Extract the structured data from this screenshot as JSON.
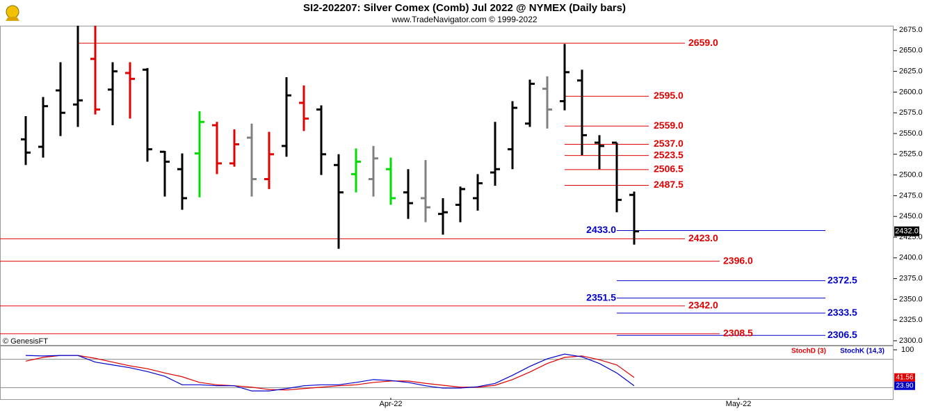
{
  "chart_data": [
    {
      "type": "ohlc",
      "title": "SI2-202207:  Silver Comex (Comb) Jul 2022 @ NYMEX  (Daily bars)",
      "subtitle": "www.TradeNavigator.com © 1999-2022",
      "watermark": "© GenesisFT",
      "categories": [
        null,
        null,
        null,
        null,
        null,
        null,
        null,
        null,
        null,
        null,
        null,
        null,
        null,
        null,
        null,
        null,
        null,
        null,
        null,
        null,
        null,
        "Apr-22",
        null,
        null,
        null,
        null,
        null,
        null,
        null,
        null,
        null,
        null,
        null,
        null,
        null,
        null,
        null,
        null,
        null,
        null,
        null,
        "May-22"
      ],
      "open": [
        2543,
        2534,
        2602,
        2585,
        2640,
        2603,
        2623,
        2627,
        2528,
        2507,
        2526,
        2560,
        2514,
        2545,
        2495,
        2535,
        2587,
        2579,
        2512,
        2501,
        2495,
        2507,
        2479,
        2472,
        2453,
        2464,
        2472,
        2503,
        2531,
        2562,
        2604,
        2589,
        2614,
        2539,
        2539,
        2476,
        null,
        null,
        null,
        null,
        null,
        null
      ],
      "high": [
        2571,
        2594,
        2636,
        2680,
        2680,
        2636,
        2636,
        2629,
        2529,
        2526,
        2577,
        2564,
        2555,
        2562,
        2552,
        2618,
        2608,
        2584,
        2525,
        2532,
        2535,
        2521,
        2507,
        2518,
        2472,
        2486,
        2501,
        2564,
        2589,
        2615,
        2619,
        2658,
        2627,
        2548,
        2539,
        2480,
        null,
        null,
        null,
        null,
        null,
        null
      ],
      "low": [
        2512,
        2521,
        2547,
        2558,
        2573,
        2560,
        2568,
        2516,
        2474,
        2458,
        2473,
        2501,
        2510,
        2474,
        2483,
        2522,
        2553,
        2500,
        2411,
        2479,
        2474,
        2464,
        2447,
        2443,
        2428,
        2443,
        2457,
        2487,
        2507,
        2558,
        2556,
        2578,
        2524,
        2507,
        2455,
        2416,
        null,
        null,
        null,
        null,
        null,
        null
      ],
      "close": [
        2527,
        2583,
        2575,
        2590,
        2579,
        2625,
        2616,
        2531,
        2516,
        2472,
        2564,
        2514,
        2537,
        2495,
        2525,
        2596,
        2568,
        2525,
        2479,
        2516,
        2520,
        2472,
        2466,
        2461,
        2455,
        2483,
        2490,
        2507,
        2581,
        2610,
        2579,
        2624,
        2548,
        2535,
        2470,
        2432,
        null,
        null,
        null,
        null,
        null,
        null
      ],
      "colors": [
        "#000000",
        "#000000",
        "#000000",
        "#000000",
        "#e00000",
        "#000000",
        "#e00000",
        "#000000",
        "#000000",
        "#000000",
        "#00dd00",
        "#e00000",
        "#e00000",
        "#808080",
        "#e00000",
        "#000000",
        "#e00000",
        "#000000",
        "#000000",
        "#00dd00",
        "#808080",
        "#00dd00",
        "#000000",
        "#808080",
        "#000000",
        "#000000",
        "#000000",
        "#000000",
        "#000000",
        "#000000",
        "#808080",
        "#000000",
        "#000000",
        "#000000",
        "#000000",
        "#000000",
        null,
        null,
        null,
        null,
        null,
        null
      ],
      "ylim": [
        2300,
        2675
      ],
      "yticks": [
        {
          "value": 2300,
          "label": "2300.0"
        },
        {
          "value": 2325,
          "label": "2325.0"
        },
        {
          "value": 2350,
          "label": "2350.0"
        },
        {
          "value": 2375,
          "label": "2375.0"
        },
        {
          "value": 2400,
          "label": "2400.0"
        },
        {
          "value": 2425,
          "label": "2425.0"
        },
        {
          "value": 2450,
          "label": "2450.0"
        },
        {
          "value": 2475,
          "label": "2475.0"
        },
        {
          "value": 2500,
          "label": "2500.0"
        },
        {
          "value": 2525,
          "label": "2525.0"
        },
        {
          "value": 2550,
          "label": "2550.0"
        },
        {
          "value": 2575,
          "label": "2575.0"
        },
        {
          "value": 2600,
          "label": "2600.0"
        },
        {
          "value": 2625,
          "label": "2625.0"
        },
        {
          "value": 2650,
          "label": "2650.0"
        },
        {
          "value": 2675,
          "label": "2675.0"
        }
      ],
      "levels": [
        {
          "value": 2659,
          "label": "2659.0",
          "color": "#e00000"
        },
        {
          "value": 2595,
          "label": "2595.0",
          "color": "#e00000"
        },
        {
          "value": 2559,
          "label": "2559.0",
          "color": "#e00000"
        },
        {
          "value": 2537,
          "label": "2537.0",
          "color": "#e00000"
        },
        {
          "value": 2523.5,
          "label": "2523.5",
          "color": "#e00000"
        },
        {
          "value": 2506.5,
          "label": "2506.5",
          "color": "#e00000"
        },
        {
          "value": 2487.5,
          "label": "2487.5",
          "color": "#e00000"
        },
        {
          "value": 2423,
          "label": "2423.0",
          "color": "#e00000"
        },
        {
          "value": 2396,
          "label": "2396.0",
          "color": "#e00000"
        },
        {
          "value": 2342,
          "label": "2342.0",
          "color": "#e00000"
        },
        {
          "value": 2308.5,
          "label": "2308.5",
          "color": "#e00000"
        },
        {
          "value": 2433,
          "label": "2433.0",
          "color": "#0000cc"
        },
        {
          "value": 2372.5,
          "label": "2372.5",
          "color": "#0000cc"
        },
        {
          "value": 2351.5,
          "label": "2351.5",
          "color": "#0000cc"
        },
        {
          "value": 2333.5,
          "label": "2333.5",
          "color": "#0000cc"
        },
        {
          "value": 2306.5,
          "label": "2306.5",
          "color": "#0000cc"
        }
      ],
      "last": {
        "value": 2432,
        "label": "2432.0"
      }
    },
    {
      "type": "line",
      "ylim": [
        0,
        100
      ],
      "yticks": [
        100
      ],
      "levels": [
        80,
        20
      ],
      "series": [
        {
          "name": "StochD (3)",
          "color": "#e00000",
          "values": [
            76,
            84,
            88,
            88,
            82,
            74,
            66,
            60,
            51,
            43,
            31,
            26,
            24,
            21,
            16,
            15,
            18,
            21,
            24,
            26,
            31,
            34,
            34,
            29,
            25,
            21,
            21,
            25,
            37,
            53,
            71,
            84,
            87,
            79,
            68,
            41.56,
            null,
            null,
            null,
            null,
            null,
            null
          ],
          "value_labels": [
            null,
            null,
            null,
            null,
            null,
            null,
            null,
            null,
            null,
            null,
            null,
            null,
            null,
            null,
            null,
            null,
            null,
            null,
            null,
            null,
            null,
            null,
            null,
            null,
            null,
            null,
            null,
            null,
            null,
            null,
            null,
            null,
            null,
            null,
            null,
            "41.56",
            null,
            null,
            null,
            null,
            null,
            null
          ]
        },
        {
          "name": "StochK (14,3)",
          "color": "#0000cc",
          "values": [
            88,
            87,
            88,
            88,
            74,
            68,
            62,
            54,
            44,
            26,
            26,
            24,
            24,
            13,
            13,
            18,
            24,
            26,
            26,
            31,
            37,
            35,
            31,
            24,
            19,
            19,
            22,
            29,
            46,
            65,
            81,
            91,
            85,
            71,
            51,
            23.9,
            null,
            null,
            null,
            null,
            null,
            null
          ],
          "value_labels": [
            null,
            null,
            null,
            null,
            null,
            null,
            null,
            null,
            null,
            null,
            null,
            null,
            null,
            null,
            null,
            null,
            null,
            null,
            null,
            null,
            null,
            null,
            null,
            null,
            null,
            null,
            null,
            null,
            null,
            null,
            null,
            null,
            null,
            null,
            null,
            "23.90",
            null,
            null,
            null,
            null,
            null,
            null
          ]
        }
      ]
    }
  ]
}
